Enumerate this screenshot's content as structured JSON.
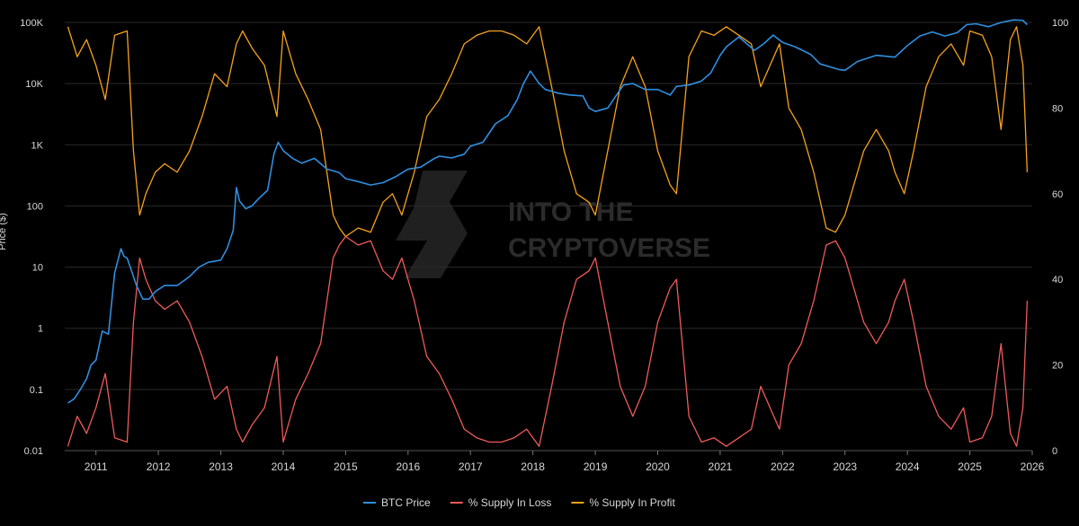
{
  "chart_data": {
    "type": "line",
    "title": "",
    "watermark": [
      "INTO THE",
      "CRYPTOVERSE"
    ],
    "xlabel": "",
    "ylabel_left": "Price ($)",
    "ylabel_right": "",
    "x_ticks": [
      "2011",
      "2012",
      "2013",
      "2014",
      "2015",
      "2016",
      "2017",
      "2018",
      "2019",
      "2020",
      "2021",
      "2022",
      "2023",
      "2024",
      "2025",
      "2026"
    ],
    "y_left_ticks": [
      {
        "value": 0.01,
        "label": "0.01"
      },
      {
        "value": 0.1,
        "label": "0.1"
      },
      {
        "value": 1,
        "label": "1"
      },
      {
        "value": 10,
        "label": "10"
      },
      {
        "value": 100,
        "label": "100"
      },
      {
        "value": 1000,
        "label": "1K"
      },
      {
        "value": 10000,
        "label": "10K"
      },
      {
        "value": 100000,
        "label": "100K"
      }
    ],
    "y_right_ticks": [
      {
        "value": 0,
        "label": "0"
      },
      {
        "value": 20,
        "label": "20"
      },
      {
        "value": 40,
        "label": "40"
      },
      {
        "value": 60,
        "label": "60"
      },
      {
        "value": 80,
        "label": "80"
      },
      {
        "value": 100,
        "label": "100"
      }
    ],
    "x_range": [
      2010.5,
      2026.0
    ],
    "y_left_range": [
      0.01,
      100000
    ],
    "y_left_scale": "log",
    "y_right_range": [
      0,
      100
    ],
    "grid": "horizontal",
    "legend_position": "bottom-center",
    "series": [
      {
        "name": "BTC Price",
        "color": "#2f8fe0",
        "axis": "left",
        "x": [
          2010.55,
          2010.65,
          2010.75,
          2010.85,
          2010.92,
          2011.0,
          2011.1,
          2011.2,
          2011.3,
          2011.4,
          2011.45,
          2011.5,
          2011.55,
          2011.65,
          2011.75,
          2011.85,
          2011.95,
          2012.1,
          2012.3,
          2012.5,
          2012.65,
          2012.8,
          2013.0,
          2013.1,
          2013.2,
          2013.25,
          2013.3,
          2013.4,
          2013.5,
          2013.6,
          2013.75,
          2013.85,
          2013.92,
          2014.0,
          2014.15,
          2014.3,
          2014.5,
          2014.7,
          2014.9,
          2015.0,
          2015.2,
          2015.4,
          2015.6,
          2015.8,
          2016.0,
          2016.2,
          2016.4,
          2016.5,
          2016.7,
          2016.9,
          2017.0,
          2017.2,
          2017.4,
          2017.6,
          2017.75,
          2017.85,
          2017.96,
          2018.1,
          2018.2,
          2018.4,
          2018.6,
          2018.8,
          2018.9,
          2019.0,
          2019.2,
          2019.45,
          2019.6,
          2019.8,
          2020.0,
          2020.2,
          2020.3,
          2020.5,
          2020.7,
          2020.85,
          2021.0,
          2021.1,
          2021.3,
          2021.55,
          2021.7,
          2021.85,
          2022.0,
          2022.2,
          2022.45,
          2022.6,
          2022.9,
          2023.0,
          2023.2,
          2023.5,
          2023.8,
          2024.0,
          2024.2,
          2024.4,
          2024.6,
          2024.8,
          2024.95,
          2025.1,
          2025.3,
          2025.5,
          2025.7,
          2025.85,
          2025.92
        ],
        "values": [
          0.06,
          0.07,
          0.1,
          0.15,
          0.25,
          0.3,
          0.9,
          0.8,
          8,
          20,
          15,
          14,
          10,
          5,
          3,
          3,
          4,
          5,
          5,
          7,
          10,
          12,
          13,
          20,
          40,
          200,
          120,
          90,
          100,
          130,
          180,
          700,
          1100,
          800,
          600,
          500,
          600,
          400,
          350,
          280,
          250,
          220,
          240,
          300,
          400,
          430,
          580,
          650,
          610,
          700,
          950,
          1100,
          2200,
          3000,
          5500,
          10000,
          16000,
          10000,
          8000,
          7000,
          6500,
          6300,
          4000,
          3500,
          4000,
          9500,
          10000,
          8000,
          8000,
          6500,
          9000,
          9500,
          11000,
          15000,
          29000,
          40000,
          58000,
          35000,
          45000,
          62000,
          47000,
          40000,
          30000,
          21000,
          17000,
          16500,
          23000,
          29000,
          27000,
          42000,
          60000,
          70000,
          60000,
          68000,
          92000,
          95000,
          85000,
          100000,
          110000,
          108000,
          92000
        ]
      },
      {
        "name": "% Supply In Loss",
        "color": "#f05a5a",
        "axis": "right",
        "x": [
          2010.55,
          2010.7,
          2010.85,
          2011.0,
          2011.15,
          2011.3,
          2011.5,
          2011.6,
          2011.7,
          2011.8,
          2011.95,
          2012.1,
          2012.3,
          2012.5,
          2012.7,
          2012.9,
          2013.1,
          2013.25,
          2013.35,
          2013.5,
          2013.7,
          2013.9,
          2014.0,
          2014.2,
          2014.4,
          2014.6,
          2014.8,
          2014.9,
          2015.0,
          2015.2,
          2015.4,
          2015.6,
          2015.75,
          2015.9,
          2016.1,
          2016.3,
          2016.5,
          2016.7,
          2016.9,
          2017.1,
          2017.3,
          2017.5,
          2017.7,
          2017.9,
          2018.1,
          2018.3,
          2018.5,
          2018.7,
          2018.9,
          2019.0,
          2019.2,
          2019.4,
          2019.6,
          2019.8,
          2020.0,
          2020.2,
          2020.3,
          2020.5,
          2020.7,
          2020.9,
          2021.1,
          2021.3,
          2021.5,
          2021.65,
          2021.8,
          2021.95,
          2022.1,
          2022.3,
          2022.5,
          2022.7,
          2022.85,
          2023.0,
          2023.1,
          2023.3,
          2023.5,
          2023.7,
          2023.8,
          2023.95,
          2024.1,
          2024.3,
          2024.5,
          2024.7,
          2024.9,
          2025.0,
          2025.2,
          2025.35,
          2025.5,
          2025.65,
          2025.75,
          2025.85,
          2025.92
        ],
        "values": [
          1,
          8,
          4,
          10,
          18,
          3,
          2,
          30,
          45,
          40,
          35,
          33,
          35,
          30,
          22,
          12,
          15,
          5,
          2,
          6,
          10,
          22,
          2,
          12,
          18,
          25,
          45,
          48,
          50,
          48,
          49,
          42,
          40,
          45,
          35,
          22,
          18,
          12,
          5,
          3,
          2,
          2,
          3,
          5,
          1,
          15,
          30,
          40,
          42,
          45,
          30,
          15,
          8,
          15,
          30,
          38,
          40,
          8,
          2,
          3,
          1,
          3,
          5,
          15,
          10,
          5,
          20,
          25,
          35,
          48,
          49,
          45,
          40,
          30,
          25,
          30,
          35,
          40,
          30,
          15,
          8,
          5,
          10,
          2,
          3,
          8,
          25,
          4,
          1,
          10,
          35
        ]
      },
      {
        "name": "% Supply In Profit",
        "color": "#f7a21b",
        "axis": "right",
        "x": [
          2010.55,
          2010.7,
          2010.85,
          2011.0,
          2011.15,
          2011.3,
          2011.5,
          2011.6,
          2011.7,
          2011.8,
          2011.95,
          2012.1,
          2012.3,
          2012.5,
          2012.7,
          2012.9,
          2013.1,
          2013.25,
          2013.35,
          2013.5,
          2013.7,
          2013.9,
          2014.0,
          2014.2,
          2014.4,
          2014.6,
          2014.8,
          2014.9,
          2015.0,
          2015.2,
          2015.4,
          2015.6,
          2015.75,
          2015.9,
          2016.1,
          2016.3,
          2016.5,
          2016.7,
          2016.9,
          2017.1,
          2017.3,
          2017.5,
          2017.7,
          2017.9,
          2018.1,
          2018.3,
          2018.5,
          2018.7,
          2018.9,
          2019.0,
          2019.2,
          2019.4,
          2019.6,
          2019.8,
          2020.0,
          2020.2,
          2020.3,
          2020.5,
          2020.7,
          2020.9,
          2021.1,
          2021.3,
          2021.5,
          2021.65,
          2021.8,
          2021.95,
          2022.1,
          2022.3,
          2022.5,
          2022.7,
          2022.85,
          2023.0,
          2023.1,
          2023.3,
          2023.5,
          2023.7,
          2023.8,
          2023.95,
          2024.1,
          2024.3,
          2024.5,
          2024.7,
          2024.9,
          2025.0,
          2025.2,
          2025.35,
          2025.5,
          2025.65,
          2025.75,
          2025.85,
          2025.92
        ],
        "values": [
          99,
          92,
          96,
          90,
          82,
          97,
          98,
          70,
          55,
          60,
          65,
          67,
          65,
          70,
          78,
          88,
          85,
          95,
          98,
          94,
          90,
          78,
          98,
          88,
          82,
          75,
          55,
          52,
          50,
          52,
          51,
          58,
          60,
          55,
          65,
          78,
          82,
          88,
          95,
          97,
          98,
          98,
          97,
          95,
          99,
          85,
          70,
          60,
          58,
          55,
          70,
          85,
          92,
          85,
          70,
          62,
          60,
          92,
          98,
          97,
          99,
          97,
          95,
          85,
          90,
          95,
          80,
          75,
          65,
          52,
          51,
          55,
          60,
          70,
          75,
          70,
          65,
          60,
          70,
          85,
          92,
          95,
          90,
          98,
          97,
          92,
          75,
          96,
          99,
          90,
          65
        ]
      }
    ]
  }
}
